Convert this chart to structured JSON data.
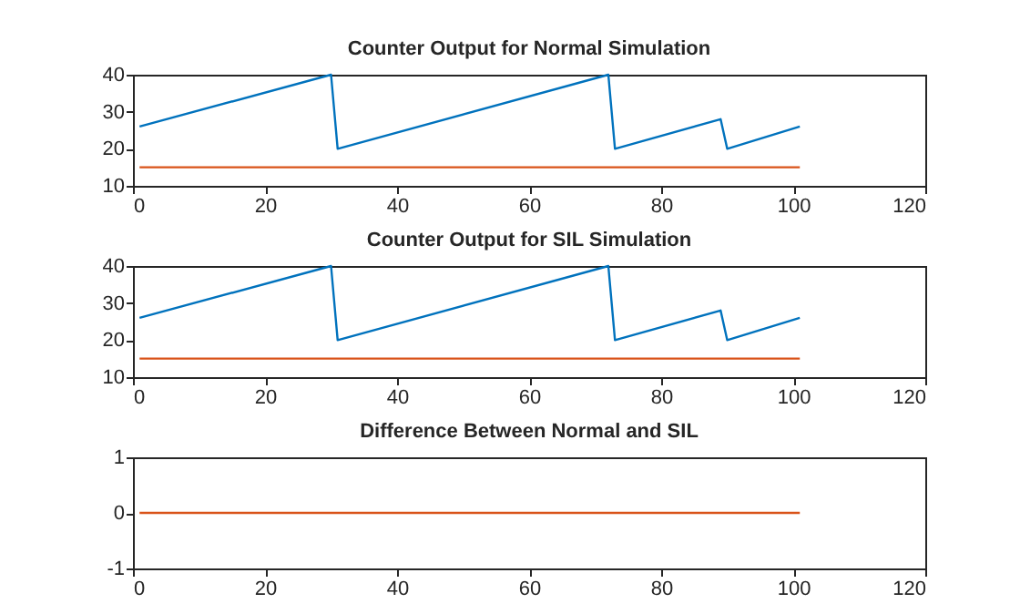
{
  "chart_data": [
    {
      "type": "line",
      "title": "Counter Output for Normal Simulation",
      "xlim": [
        0,
        120
      ],
      "xticks": [
        0,
        20,
        40,
        60,
        80,
        100,
        120
      ],
      "ylim": [
        10,
        40
      ],
      "yticks": [
        10,
        20,
        30,
        40
      ],
      "series": [
        {
          "color": "#0072bd",
          "x": [
            1,
            30,
            31,
            72,
            73,
            89,
            90,
            101
          ],
          "values": [
            26,
            40,
            20,
            40,
            20,
            28,
            20,
            26
          ]
        },
        {
          "color": "#d95319",
          "x": [
            1,
            101
          ],
          "values": [
            15,
            15
          ]
        }
      ]
    },
    {
      "type": "line",
      "title": "Counter Output for SIL Simulation",
      "xlim": [
        0,
        120
      ],
      "xticks": [
        0,
        20,
        40,
        60,
        80,
        100,
        120
      ],
      "ylim": [
        10,
        40
      ],
      "yticks": [
        10,
        20,
        30,
        40
      ],
      "series": [
        {
          "color": "#0072bd",
          "x": [
            1,
            30,
            31,
            72,
            73,
            89,
            90,
            101
          ],
          "values": [
            26,
            40,
            20,
            40,
            20,
            28,
            20,
            26
          ]
        },
        {
          "color": "#d95319",
          "x": [
            1,
            101
          ],
          "values": [
            15,
            15
          ]
        }
      ]
    },
    {
      "type": "line",
      "title": "Difference Between Normal and SIL",
      "xlim": [
        0,
        120
      ],
      "xticks": [
        0,
        20,
        40,
        60,
        80,
        100,
        120
      ],
      "ylim": [
        -1,
        1
      ],
      "yticks": [
        -1,
        0,
        1
      ],
      "series": [
        {
          "color": "#d95319",
          "x": [
            1,
            101
          ],
          "values": [
            0,
            0
          ]
        }
      ]
    }
  ]
}
